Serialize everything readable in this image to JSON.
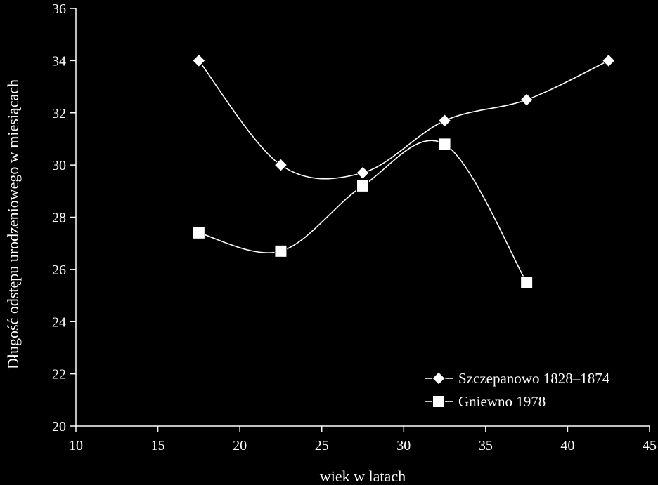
{
  "chart_data": {
    "type": "line",
    "xlabel": "wiek w latach",
    "ylabel": "Długość odstępu urodzeniowego w miesiącach",
    "xlim": [
      10,
      45
    ],
    "ylim": [
      20,
      36
    ],
    "xticks": [
      10,
      15,
      20,
      25,
      30,
      35,
      40,
      45
    ],
    "yticks": [
      20,
      22,
      24,
      26,
      28,
      30,
      32,
      34,
      36
    ],
    "smooth": true,
    "grid": false,
    "legend_position": "bottom-right",
    "series": [
      {
        "name": "Szczepanowo 1828–1874",
        "marker": "diamond",
        "x": [
          17.5,
          22.5,
          27.5,
          32.5,
          37.5,
          42.5
        ],
        "y": [
          34.0,
          30.0,
          29.7,
          31.7,
          32.5,
          34.0
        ]
      },
      {
        "name": "Gniewno 1978",
        "marker": "square",
        "x": [
          17.5,
          22.5,
          27.5,
          32.5,
          37.5
        ],
        "y": [
          27.4,
          26.7,
          29.2,
          30.8,
          25.5
        ]
      }
    ]
  },
  "colors": {
    "background": "#000000",
    "foreground": "#ffffff"
  }
}
